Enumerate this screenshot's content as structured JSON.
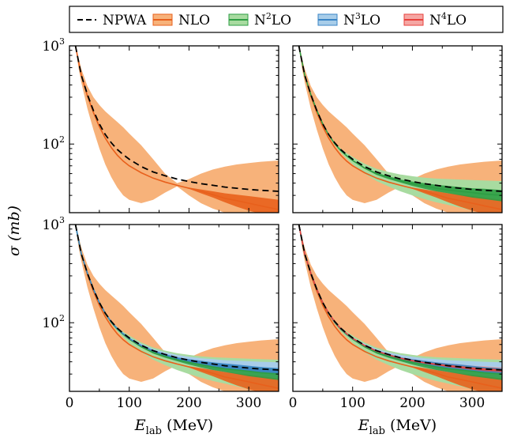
{
  "figure": {
    "ylabel": "σ (mb)",
    "xlabel_main": "E",
    "xlabel_sub": "lab",
    "xlabel_unit": " (MeV)"
  },
  "legend": [
    {
      "key": "npwa",
      "label": "NPWA",
      "style": "dashed",
      "color": "#000000"
    },
    {
      "key": "nlo",
      "label": "NLO",
      "base": "N",
      "sup": "",
      "tail": "LO",
      "color": "#e8601c",
      "band": "#f7b27a"
    },
    {
      "key": "n2lo",
      "label": "N2LO",
      "base": "N",
      "sup": "2",
      "tail": "LO",
      "color": "#2e9e44",
      "band": "#a8dba0"
    },
    {
      "key": "n3lo",
      "label": "N3LO",
      "base": "N",
      "sup": "3",
      "tail": "LO",
      "color": "#3a85c6",
      "band": "#a8cde9"
    },
    {
      "key": "n4lo",
      "label": "N4LO",
      "base": "N",
      "sup": "4",
      "tail": "LO",
      "color": "#e8413c",
      "band": "#f5a6a3"
    }
  ],
  "chart_data": {
    "type": "line",
    "x_axis": {
      "label": "E_lab (MeV)",
      "range": [
        0,
        350
      ],
      "ticks": [
        0,
        100,
        200,
        300
      ]
    },
    "y_axis": {
      "label": "σ (mb)",
      "scale": "log",
      "range": [
        20,
        1000
      ],
      "ticks": [
        100,
        1000
      ],
      "tick_labels": [
        "10^2",
        "10^3"
      ]
    },
    "x": [
      10,
      15,
      20,
      30,
      40,
      50,
      60,
      70,
      80,
      90,
      100,
      120,
      140,
      160,
      180,
      200,
      220,
      240,
      260,
      280,
      300,
      320,
      350
    ],
    "series": {
      "npwa": [
        1000,
        700,
        500,
        320,
        220,
        160,
        125,
        103,
        88,
        78,
        70,
        59,
        52,
        47.5,
        44,
        41.5,
        39.5,
        38,
        36.5,
        35.5,
        34.5,
        33.8,
        33
      ],
      "nlo": [
        1000,
        700,
        500,
        310,
        210,
        150,
        115,
        92,
        77,
        67,
        60,
        51,
        45,
        41,
        38,
        35.5,
        33,
        30.5,
        28,
        26.5,
        25,
        23.5,
        21.5
      ],
      "n2lo": [
        1000,
        700,
        500,
        320,
        220,
        160,
        124,
        101,
        86,
        76,
        68,
        57,
        50,
        45.5,
        42,
        39.5,
        37.5,
        35.5,
        34,
        33,
        32,
        31,
        30
      ],
      "n3lo": [
        1000,
        700,
        500,
        320,
        220,
        160,
        125,
        102,
        87,
        77,
        69,
        58.5,
        51.5,
        47,
        43.5,
        41,
        39,
        37.5,
        36,
        35,
        34,
        33,
        32
      ],
      "n4lo": [
        1000,
        700,
        500,
        320,
        220,
        160,
        125,
        102.5,
        87.5,
        77.5,
        69.5,
        58.5,
        51.5,
        47,
        43.5,
        41,
        39,
        37.5,
        36,
        35,
        34,
        33.2,
        32.3
      ]
    },
    "bands": {
      "nlo_lo": [
        1000,
        600,
        420,
        230,
        140,
        90,
        62,
        46,
        36,
        30,
        27,
        25,
        27,
        32,
        37,
        30,
        25,
        22,
        20,
        18.5,
        17.5,
        17,
        16
      ],
      "nlo_hi": [
        1000,
        760,
        580,
        390,
        300,
        250,
        215,
        190,
        168,
        148,
        128,
        97,
        70,
        50,
        40,
        44,
        50,
        55,
        59,
        62,
        64,
        66,
        68
      ],
      "nlo_dark_lo": [
        1000,
        700,
        500,
        310,
        210,
        150,
        115,
        92,
        77,
        67,
        60,
        51,
        45,
        41,
        38,
        35,
        31.5,
        28.5,
        25.5,
        23,
        21,
        19.5,
        17.5
      ],
      "nlo_dark_hi": [
        1000,
        700,
        500,
        310,
        210,
        150,
        115,
        92,
        77,
        67,
        60,
        51,
        45,
        41,
        38,
        36,
        34.5,
        33,
        31.5,
        30.5,
        29.5,
        28.5,
        27
      ],
      "n2lo_lo": [
        1000,
        700,
        500,
        320,
        220,
        160,
        122,
        98,
        82,
        71,
        62,
        50,
        42,
        37,
        33,
        30,
        27.5,
        25.5,
        24,
        22.5,
        21,
        20,
        19
      ],
      "n2lo_hi": [
        1000,
        700,
        500,
        320,
        220,
        160,
        126,
        104,
        90,
        81,
        74,
        63,
        56,
        52,
        49,
        47,
        45.5,
        44.5,
        44,
        43.5,
        43,
        42.5,
        42
      ],
      "n2lo_dark_lo": [
        1000,
        700,
        500,
        320,
        220,
        160,
        124,
        101,
        85.5,
        75,
        67,
        56,
        48.5,
        44,
        40.5,
        37.5,
        35,
        33,
        31.5,
        30,
        28.5,
        27.5,
        26
      ],
      "n2lo_dark_hi": [
        1000,
        700,
        500,
        320,
        220,
        160,
        124,
        101,
        86.5,
        77,
        69,
        58,
        51,
        47,
        43.5,
        41.5,
        40,
        38.5,
        37.5,
        36.5,
        35.5,
        35,
        34
      ],
      "n3lo_lo": [
        1000,
        700,
        500,
        320,
        220,
        160,
        124,
        101,
        86,
        75.5,
        67.5,
        56,
        49,
        44,
        40.5,
        37.5,
        35,
        33,
        31,
        29.5,
        28,
        27,
        26
      ],
      "n3lo_hi": [
        1000,
        700,
        500,
        320,
        220,
        160,
        126,
        103,
        88.5,
        78.5,
        71,
        61,
        54,
        50,
        47,
        45,
        43.5,
        42.5,
        41.5,
        41,
        40.5,
        40,
        39.5
      ],
      "n3lo_dark_lo": [
        1000,
        700,
        500,
        320,
        220,
        160,
        125,
        102,
        86.5,
        76.5,
        68.5,
        57.5,
        50.5,
        46,
        42.5,
        40,
        37.5,
        35.5,
        34,
        33,
        32,
        31,
        29.5
      ],
      "n3lo_dark_hi": [
        1000,
        700,
        500,
        320,
        220,
        160,
        125,
        102,
        87.5,
        77.5,
        69.5,
        59.5,
        52.5,
        48,
        44.5,
        42.5,
        41,
        39.5,
        38.5,
        37.5,
        36.5,
        35.5,
        34.5
      ],
      "n4lo_lo": [
        1000,
        700,
        500,
        320,
        220,
        160,
        125,
        102,
        87,
        77,
        69,
        58,
        51,
        46.5,
        43,
        40,
        38,
        36,
        34.5,
        33,
        32,
        31,
        30
      ],
      "n4lo_hi": [
        1000,
        700,
        500,
        320,
        220,
        160,
        125,
        103,
        88,
        78,
        70,
        59.5,
        52.5,
        48,
        44.5,
        42.5,
        40.5,
        39.5,
        38.5,
        37.5,
        36.5,
        36,
        35
      ],
      "n4lo_dark_lo": [
        1000,
        700,
        500,
        320,
        220,
        160,
        125,
        102.5,
        87.5,
        77.5,
        69.5,
        58.5,
        51.5,
        47,
        43.5,
        40.8,
        38.8,
        37,
        35.5,
        34.3,
        33.2,
        32.2,
        31.2
      ],
      "n4lo_dark_hi": [
        1000,
        700,
        500,
        320,
        220,
        160,
        125,
        102.5,
        87.5,
        77.5,
        69.5,
        59,
        52,
        47.5,
        44,
        41.8,
        39.8,
        38.5,
        37.2,
        36.2,
        35.2,
        34.5,
        33.7
      ]
    },
    "panels": [
      {
        "position": "top-left",
        "orders": [
          "nlo"
        ]
      },
      {
        "position": "top-right",
        "orders": [
          "nlo",
          "n2lo"
        ]
      },
      {
        "position": "bottom-left",
        "orders": [
          "nlo",
          "n2lo",
          "n3lo"
        ]
      },
      {
        "position": "bottom-right",
        "orders": [
          "nlo",
          "n2lo",
          "n3lo",
          "n4lo"
        ]
      }
    ],
    "legend_position": "top",
    "grid": false
  }
}
